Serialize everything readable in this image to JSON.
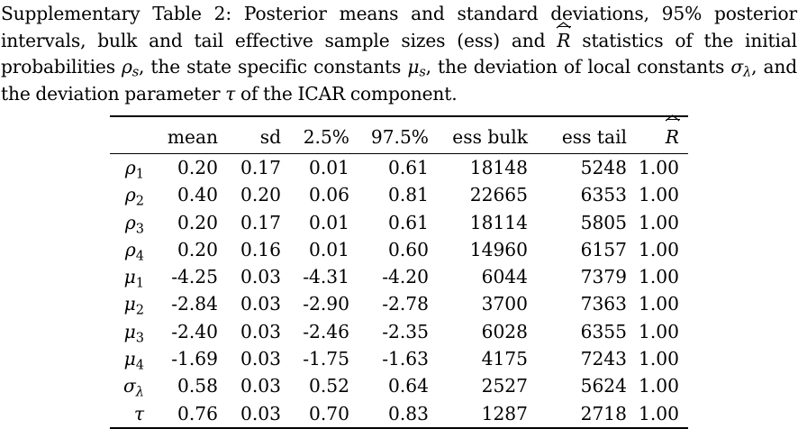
{
  "caption": {
    "label": "Supplementary Table 2:",
    "text_part1": "Posterior means and standard deviations, 95% posterior intervals, bulk and tail effective sample sizes (ess) and",
    "rhat_symbol": "R",
    "text_part2": "statistics of the initial probabilities",
    "rho_symbol": "ρ",
    "rho_sub": "s",
    "text_part3": ", the state specific constants",
    "mu_symbol": "μ",
    "mu_sub": "s",
    "text_part4": ", the deviation of local constants",
    "sigma_symbol": "σ",
    "sigma_sub": "λ",
    "text_part5": ",",
    "text_part6": "and the deviation parameter",
    "tau_symbol": "τ",
    "text_part7": "of the ICAR component."
  },
  "table": {
    "headers": [
      "",
      "mean",
      "sd",
      "2.5%",
      "97.5%",
      "ess bulk",
      "ess tail",
      "R"
    ],
    "rows": [
      {
        "sym": "ρ",
        "sub": "1",
        "values": [
          "0.20",
          "0.17",
          "0.01",
          "0.61",
          "18148",
          "5248",
          "1.00"
        ]
      },
      {
        "sym": "ρ",
        "sub": "2",
        "values": [
          "0.40",
          "0.20",
          "0.06",
          "0.81",
          "22665",
          "6353",
          "1.00"
        ]
      },
      {
        "sym": "ρ",
        "sub": "3",
        "values": [
          "0.20",
          "0.17",
          "0.01",
          "0.61",
          "18114",
          "5805",
          "1.00"
        ]
      },
      {
        "sym": "ρ",
        "sub": "4",
        "values": [
          "0.20",
          "0.16",
          "0.01",
          "0.60",
          "14960",
          "6157",
          "1.00"
        ]
      },
      {
        "sym": "μ",
        "sub": "1",
        "values": [
          "-4.25",
          "0.03",
          "-4.31",
          "-4.20",
          "6044",
          "7379",
          "1.00"
        ]
      },
      {
        "sym": "μ",
        "sub": "2",
        "values": [
          "-2.84",
          "0.03",
          "-2.90",
          "-2.78",
          "3700",
          "7363",
          "1.00"
        ]
      },
      {
        "sym": "μ",
        "sub": "3",
        "values": [
          "-2.40",
          "0.03",
          "-2.46",
          "-2.35",
          "6028",
          "6355",
          "1.00"
        ]
      },
      {
        "sym": "μ",
        "sub": "4",
        "values": [
          "-1.69",
          "0.03",
          "-1.75",
          "-1.63",
          "4175",
          "7243",
          "1.00"
        ]
      },
      {
        "sym": "σ",
        "sub": "λ",
        "values": [
          "0.58",
          "0.03",
          "0.52",
          "0.64",
          "2527",
          "5624",
          "1.00"
        ]
      },
      {
        "sym": "τ",
        "sub": "",
        "values": [
          "0.76",
          "0.03",
          "0.70",
          "0.83",
          "1287",
          "2718",
          "1.00"
        ]
      }
    ]
  }
}
